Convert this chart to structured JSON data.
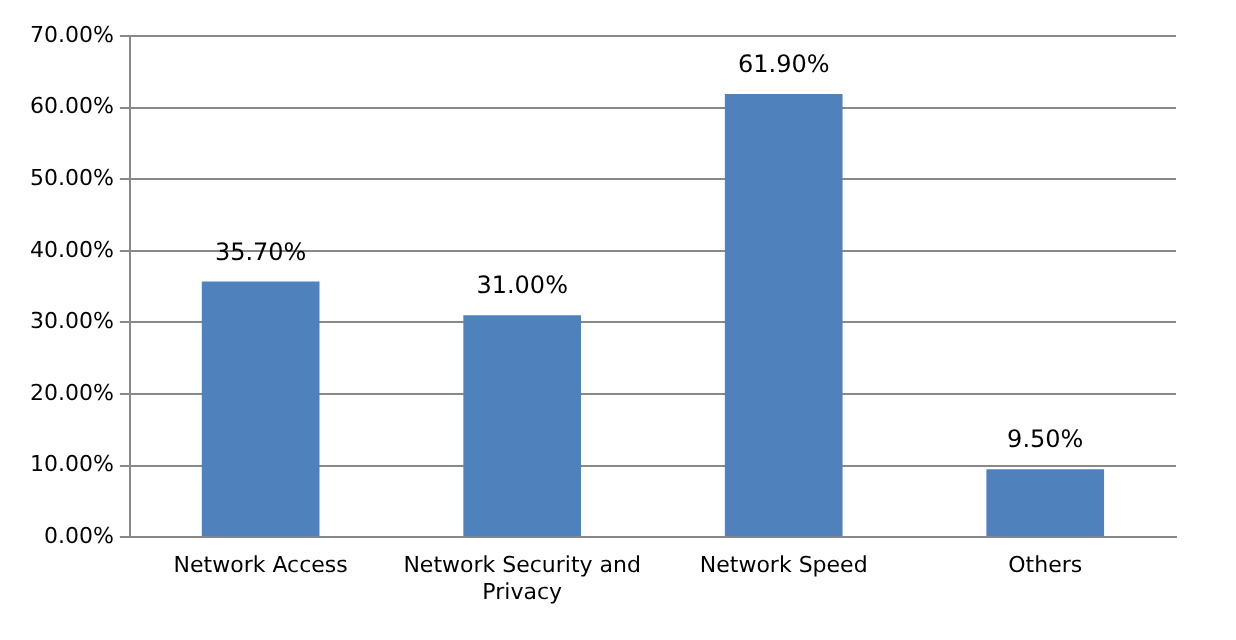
{
  "chart_data": {
    "type": "bar",
    "categories": [
      "Network Access",
      "Network Security and Privacy",
      "Network Speed",
      "Others"
    ],
    "values": [
      35.7,
      31.0,
      61.9,
      9.5
    ],
    "color": "#4f81bd",
    "value_labels": [
      "35.70%",
      "31.00%",
      "61.90%",
      "9.50%"
    ],
    "ylim": [
      0,
      70
    ],
    "yticks": [
      {
        "value": 0,
        "label": "0.00%"
      },
      {
        "value": 10,
        "label": "10.00%"
      },
      {
        "value": 20,
        "label": "20.00%"
      },
      {
        "value": 30,
        "label": "30.00%"
      },
      {
        "value": 40,
        "label": "40.00%"
      },
      {
        "value": 50,
        "label": "50.00%"
      },
      {
        "value": 60,
        "label": "60.00%"
      },
      {
        "value": 70,
        "label": "70.00%"
      }
    ],
    "grid": "y",
    "legend": false
  }
}
